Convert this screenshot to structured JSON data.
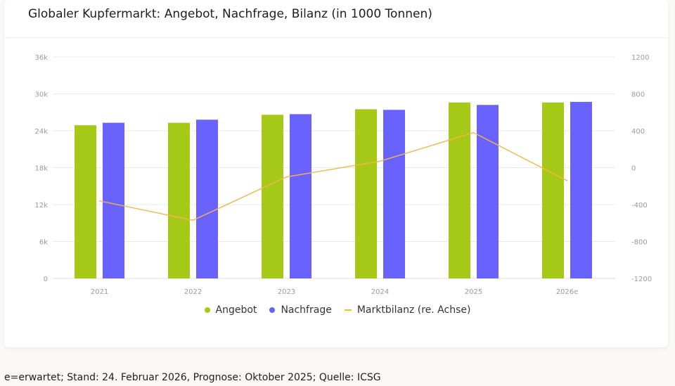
{
  "chart_data": {
    "type": "bar",
    "title": "Globaler Kupfermarkt: Angebot, Nachfrage, Bilanz (in 1000 Tonnen)",
    "categories": [
      "2021",
      "2022",
      "2023",
      "2024",
      "2025",
      "2026e"
    ],
    "series": [
      {
        "name": "Angebot",
        "type": "bar",
        "axis": "left",
        "color": "#a6c917",
        "values": [
          24900,
          25300,
          26600,
          27500,
          28600,
          28600
        ]
      },
      {
        "name": "Nachfrage",
        "type": "bar",
        "axis": "left",
        "color": "#6a62fd",
        "values": [
          25300,
          25800,
          26700,
          27400,
          28200,
          28700
        ]
      },
      {
        "name": "Marktbilanz (re. Achse)",
        "type": "line",
        "axis": "right",
        "color": "#f0b84a",
        "values": [
          -360,
          -570,
          -100,
          70,
          380,
          -140
        ]
      }
    ],
    "y_left": {
      "min": 0,
      "max": 36000,
      "ticks": [
        "0",
        "6k",
        "12k",
        "18k",
        "24k",
        "30k",
        "36k"
      ]
    },
    "y_right": {
      "min": -1200,
      "max": 1200,
      "ticks": [
        "-1200",
        "-800",
        "-400",
        "0",
        "400",
        "800",
        "1200"
      ]
    },
    "grid": true,
    "legend_position": "bottom-center"
  },
  "legend": {
    "items": [
      {
        "label": "Angebot",
        "color": "#a6c917",
        "kind": "dot"
      },
      {
        "label": "Nachfrage",
        "color": "#6a62fd",
        "kind": "dot"
      },
      {
        "label": "Marktbilanz (re. Achse)",
        "color": "#f0b84a",
        "kind": "line"
      }
    ]
  },
  "footnote": "e=erwartet; Stand: 24. Februar 2026, Prognose: Oktober 2025; Quelle: ICSG"
}
